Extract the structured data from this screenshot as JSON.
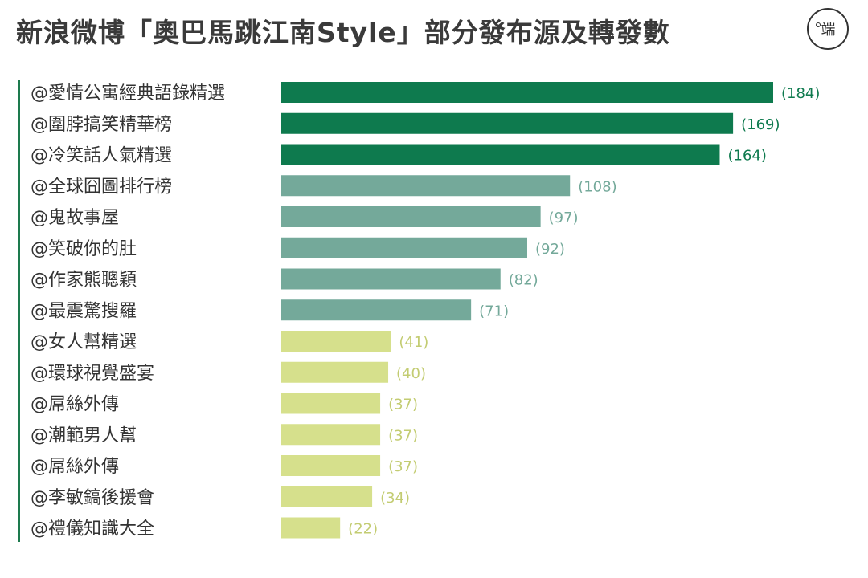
{
  "title": "新浪微博「奧巴馬跳江南Style」部分發布源及轉發數",
  "logo_text": "端",
  "chart_data": {
    "type": "bar",
    "orientation": "horizontal",
    "categories": [
      "@愛情公寓經典語錄精選",
      "@圍脖搞笑精華榜",
      "@冷笑話人氣精選",
      "@全球囧圖排行榜",
      "@鬼故事屋",
      "@笑破你的肚",
      "@作家熊聰穎",
      "@最震驚搜羅",
      "@女人幫精選",
      "@環球視覺盛宴",
      "@屌絲外傳",
      "@潮範男人幫",
      "@屌絲外傳",
      "@李敏鎬後援會",
      "@禮儀知識大全"
    ],
    "values": [
      184,
      169,
      164,
      108,
      97,
      92,
      82,
      71,
      41,
      40,
      37,
      37,
      37,
      34,
      22
    ],
    "value_labels": [
      "(184)",
      "(169)",
      "(164)",
      "(108)",
      "(97)",
      "(92)",
      "(82)",
      "(71)",
      "(41)",
      "(40)",
      "(37)",
      "(37)",
      "(37)",
      "(34)",
      "(22)"
    ],
    "colors": {
      "top": "#0e7a4e",
      "mid": "#74a99a",
      "low": "#d6e08c",
      "axis": "#1d7a4e",
      "label": "#333333"
    },
    "tiers": [
      "top",
      "top",
      "top",
      "mid",
      "mid",
      "mid",
      "mid",
      "mid",
      "low",
      "low",
      "low",
      "low",
      "low",
      "low",
      "low"
    ],
    "xlim": [
      0,
      184
    ],
    "grid": false,
    "title": "新浪微博「奧巴馬跳江南Style」部分發布源及轉發數"
  }
}
